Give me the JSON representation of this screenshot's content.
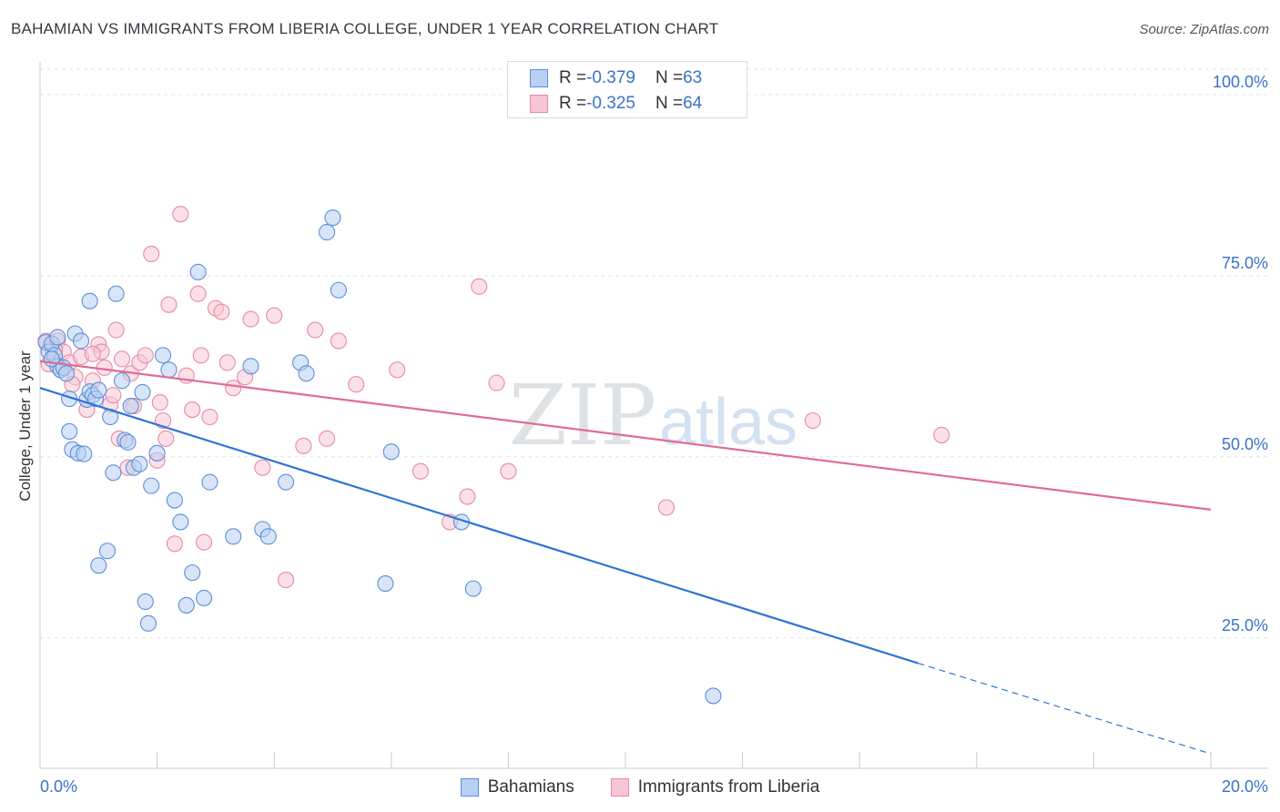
{
  "title": "BAHAMIAN VS IMMIGRANTS FROM LIBERIA COLLEGE, UNDER 1 YEAR CORRELATION CHART",
  "source": "Source: ZipAtlas.com",
  "watermark": {
    "zip": "ZIP",
    "atlas": "atlas"
  },
  "legend_top": [
    {
      "r_label": "R = ",
      "r_value": "-0.379",
      "n_label": "N = ",
      "n_value": "63"
    },
    {
      "r_label": "R = ",
      "r_value": "-0.325",
      "n_label": "N = ",
      "n_value": "64"
    }
  ],
  "legend_bottom": [
    "Bahamians",
    "Immigrants from Liberia"
  ],
  "colors": {
    "blue_fill": "#b8d0f3",
    "blue_stroke": "#5b8fd8",
    "blue_line": "#2f74d6",
    "pink_fill": "#f7c6d4",
    "pink_stroke": "#e68aa8",
    "pink_line": "#e06c95",
    "tick_label": "#3a72c8",
    "grid": "#dde1e6"
  },
  "chart_data": {
    "type": "scatter",
    "title": "BAHAMIAN VS IMMIGRANTS FROM LIBERIA COLLEGE, UNDER 1 YEAR CORRELATION CHART",
    "xlabel": "",
    "ylabel": "College, Under 1 year",
    "xlim": [
      0,
      20
    ],
    "ylim": [
      7,
      103
    ],
    "x_tick_labels": [
      "0.0%",
      "20.0%"
    ],
    "y_ticks": [
      25,
      50,
      75,
      100
    ],
    "y_tick_labels": [
      "25.0%",
      "50.0%",
      "75.0%",
      "100.0%"
    ],
    "series": [
      {
        "name": "Bahamians",
        "color": "blue",
        "trend": {
          "x0": 0.0,
          "y0": 59.5,
          "x1": 15.0,
          "y1": 21.5,
          "dash_to_x": 20.0,
          "dash_to_y": 9.0
        },
        "points": [
          [
            0.1,
            65.8
          ],
          [
            0.15,
            64.5
          ],
          [
            0.2,
            65.6
          ],
          [
            0.25,
            64.0
          ],
          [
            0.3,
            62.5
          ],
          [
            0.35,
            62.0
          ],
          [
            0.4,
            62.3
          ],
          [
            0.5,
            58.0
          ],
          [
            0.6,
            67.0
          ],
          [
            0.7,
            66.0
          ],
          [
            0.8,
            57.9
          ],
          [
            0.85,
            59.0
          ],
          [
            0.9,
            58.5
          ],
          [
            0.95,
            58.0
          ],
          [
            0.5,
            53.5
          ],
          [
            0.55,
            51.0
          ],
          [
            0.65,
            50.5
          ],
          [
            0.75,
            50.4
          ],
          [
            0.85,
            71.5
          ],
          [
            1.0,
            59.2
          ],
          [
            1.0,
            35.0
          ],
          [
            1.15,
            37.0
          ],
          [
            1.25,
            47.8
          ],
          [
            1.3,
            72.5
          ],
          [
            1.4,
            60.5
          ],
          [
            1.45,
            52.3
          ],
          [
            1.5,
            52.0
          ],
          [
            1.6,
            48.5
          ],
          [
            1.7,
            49.0
          ],
          [
            1.75,
            58.9
          ],
          [
            1.8,
            30.0
          ],
          [
            1.85,
            27.0
          ],
          [
            1.9,
            46.0
          ],
          [
            2.0,
            50.5
          ],
          [
            2.1,
            64.0
          ],
          [
            2.2,
            62.0
          ],
          [
            2.3,
            44.0
          ],
          [
            2.4,
            41.0
          ],
          [
            2.5,
            29.5
          ],
          [
            2.6,
            34.0
          ],
          [
            2.7,
            75.5
          ],
          [
            2.8,
            30.5
          ],
          [
            2.9,
            46.5
          ],
          [
            3.3,
            39.0
          ],
          [
            3.6,
            62.5
          ],
          [
            3.8,
            40.0
          ],
          [
            3.9,
            39.0
          ],
          [
            4.2,
            46.5
          ],
          [
            4.45,
            63.0
          ],
          [
            4.55,
            61.5
          ],
          [
            4.9,
            81.0
          ],
          [
            5.0,
            83.0
          ],
          [
            5.1,
            73.0
          ],
          [
            5.9,
            32.5
          ],
          [
            6.0,
            50.7
          ],
          [
            7.2,
            41.0
          ],
          [
            7.4,
            31.8
          ],
          [
            11.5,
            17.0
          ],
          [
            0.45,
            61.5
          ],
          [
            1.2,
            55.5
          ],
          [
            0.3,
            66.5
          ],
          [
            0.2,
            63.5
          ],
          [
            1.55,
            57.0
          ]
        ]
      },
      {
        "name": "Immigrants from Liberia",
        "color": "pink",
        "trend": {
          "x0": 0.0,
          "y0": 63.2,
          "x1": 20.0,
          "y1": 42.7
        },
        "points": [
          [
            0.1,
            66.0
          ],
          [
            0.2,
            65.0
          ],
          [
            0.3,
            66.0
          ],
          [
            0.4,
            64.5
          ],
          [
            0.5,
            63.0
          ],
          [
            0.6,
            61.0
          ],
          [
            0.7,
            63.8
          ],
          [
            0.8,
            56.5
          ],
          [
            0.9,
            60.5
          ],
          [
            1.0,
            65.5
          ],
          [
            1.05,
            64.5
          ],
          [
            1.1,
            62.3
          ],
          [
            1.2,
            57.2
          ],
          [
            1.3,
            67.5
          ],
          [
            1.35,
            52.5
          ],
          [
            1.4,
            63.5
          ],
          [
            1.5,
            48.5
          ],
          [
            1.55,
            61.5
          ],
          [
            1.6,
            57.0
          ],
          [
            1.7,
            63.0
          ],
          [
            1.8,
            64.0
          ],
          [
            1.9,
            78.0
          ],
          [
            2.0,
            49.5
          ],
          [
            2.05,
            57.5
          ],
          [
            2.1,
            55.0
          ],
          [
            2.2,
            71.0
          ],
          [
            2.3,
            38.0
          ],
          [
            2.4,
            83.5
          ],
          [
            2.5,
            61.2
          ],
          [
            2.6,
            56.5
          ],
          [
            2.7,
            72.5
          ],
          [
            2.75,
            64.0
          ],
          [
            2.8,
            38.2
          ],
          [
            2.9,
            55.5
          ],
          [
            3.0,
            70.5
          ],
          [
            3.1,
            70.0
          ],
          [
            3.2,
            63.0
          ],
          [
            3.3,
            59.5
          ],
          [
            3.5,
            61.0
          ],
          [
            3.6,
            69.0
          ],
          [
            3.8,
            48.5
          ],
          [
            4.0,
            69.5
          ],
          [
            4.2,
            33.0
          ],
          [
            4.5,
            51.5
          ],
          [
            4.7,
            67.5
          ],
          [
            4.9,
            52.5
          ],
          [
            5.1,
            66.0
          ],
          [
            5.4,
            60.0
          ],
          [
            6.1,
            62.0
          ],
          [
            6.5,
            48.0
          ],
          [
            7.0,
            41.0
          ],
          [
            7.3,
            44.5
          ],
          [
            7.5,
            73.5
          ],
          [
            7.8,
            60.2
          ],
          [
            8.0,
            48.0
          ],
          [
            10.7,
            43.0
          ],
          [
            13.2,
            55.0
          ],
          [
            15.4,
            53.0
          ],
          [
            0.15,
            62.8
          ],
          [
            0.25,
            64.8
          ],
          [
            0.9,
            64.2
          ],
          [
            1.25,
            58.5
          ],
          [
            0.55,
            60.0
          ],
          [
            2.15,
            52.5
          ]
        ]
      }
    ]
  }
}
